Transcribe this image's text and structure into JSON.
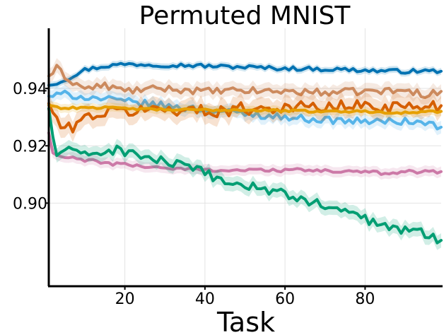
{
  "chart_data": {
    "type": "line",
    "title": "Permuted MNIST",
    "xlabel": "Task",
    "ylabel": "",
    "xlim": [
      1,
      99
    ],
    "ylim": [
      0.871,
      0.961
    ],
    "xticks": [
      20,
      40,
      60,
      80
    ],
    "yticks": [
      0.9,
      0.92,
      0.94
    ],
    "xtick_labels": [
      "20",
      "40",
      "60",
      "80"
    ],
    "ytick_labels": [
      "0.90",
      "0.92",
      "0.94"
    ],
    "grid": true,
    "legend": "none",
    "series": [
      {
        "color": "#0072b2",
        "band": 0.0012,
        "points": [
          [
            1,
            0.9411
          ],
          [
            5,
            0.943
          ],
          [
            10,
            0.9465
          ],
          [
            15,
            0.9478
          ],
          [
            20,
            0.9485
          ],
          [
            25,
            0.9484
          ],
          [
            30,
            0.9482
          ],
          [
            35,
            0.9481
          ],
          [
            40,
            0.9479
          ],
          [
            45,
            0.9476
          ],
          [
            50,
            0.9475
          ],
          [
            55,
            0.9472
          ],
          [
            60,
            0.947
          ],
          [
            65,
            0.9469
          ],
          [
            70,
            0.9467
          ],
          [
            75,
            0.9466
          ],
          [
            80,
            0.9463
          ],
          [
            85,
            0.9461
          ],
          [
            90,
            0.946
          ],
          [
            95,
            0.9461
          ],
          [
            99,
            0.946
          ]
        ],
        "wiggle": 0.0007
      },
      {
        "color": "#cc8a5e",
        "band": 0.0025,
        "points": [
          [
            1,
            0.9443
          ],
          [
            3,
            0.947
          ],
          [
            6,
            0.943
          ],
          [
            10,
            0.94
          ],
          [
            15,
            0.941
          ],
          [
            20,
            0.9392
          ],
          [
            30,
            0.94
          ],
          [
            40,
            0.939
          ],
          [
            50,
            0.9392
          ],
          [
            60,
            0.939
          ],
          [
            70,
            0.9386
          ],
          [
            80,
            0.939
          ],
          [
            90,
            0.9392
          ],
          [
            95,
            0.938
          ],
          [
            99,
            0.939
          ]
        ],
        "wiggle": 0.0012
      },
      {
        "color": "#56b4e9",
        "band": 0.0022,
        "points": [
          [
            1,
            0.9373
          ],
          [
            5,
            0.938
          ],
          [
            10,
            0.937
          ],
          [
            20,
            0.9355
          ],
          [
            30,
            0.934
          ],
          [
            40,
            0.9325
          ],
          [
            50,
            0.9312
          ],
          [
            60,
            0.93
          ],
          [
            70,
            0.929
          ],
          [
            80,
            0.9285
          ],
          [
            90,
            0.9285
          ],
          [
            95,
            0.928
          ],
          [
            99,
            0.9265
          ]
        ],
        "wiggle": 0.0012
      },
      {
        "color": "#d55e00",
        "band": 0.0035,
        "points": [
          [
            1,
            0.9348
          ],
          [
            3,
            0.929
          ],
          [
            5,
            0.925
          ],
          [
            8,
            0.928
          ],
          [
            12,
            0.931
          ],
          [
            20,
            0.932
          ],
          [
            30,
            0.933
          ],
          [
            40,
            0.932
          ],
          [
            50,
            0.933
          ],
          [
            60,
            0.9335
          ],
          [
            70,
            0.9335
          ],
          [
            80,
            0.934
          ],
          [
            90,
            0.9335
          ],
          [
            95,
            0.934
          ],
          [
            99,
            0.934
          ]
        ],
        "wiggle": 0.0022
      },
      {
        "color": "#e69f00",
        "band": 0.0015,
        "points": [
          [
            1,
            0.9342
          ],
          [
            5,
            0.933
          ],
          [
            10,
            0.9335
          ],
          [
            20,
            0.933
          ],
          [
            30,
            0.9326
          ],
          [
            40,
            0.9325
          ],
          [
            50,
            0.9325
          ],
          [
            60,
            0.9322
          ],
          [
            70,
            0.932
          ],
          [
            80,
            0.932
          ],
          [
            90,
            0.9315
          ],
          [
            95,
            0.9318
          ],
          [
            99,
            0.932
          ]
        ],
        "wiggle": 0.0004
      },
      {
        "color": "#cc79a7",
        "band": 0.0018,
        "points": [
          [
            1,
            0.9245
          ],
          [
            2,
            0.9175
          ],
          [
            4,
            0.916
          ],
          [
            8,
            0.9155
          ],
          [
            15,
            0.914
          ],
          [
            25,
            0.9128
          ],
          [
            35,
            0.9118
          ],
          [
            45,
            0.9115
          ],
          [
            55,
            0.9115
          ],
          [
            65,
            0.9115
          ],
          [
            75,
            0.911
          ],
          [
            85,
            0.9105
          ],
          [
            90,
            0.911
          ],
          [
            95,
            0.911
          ],
          [
            99,
            0.911
          ]
        ],
        "wiggle": 0.0006
      },
      {
        "color": "#009e73",
        "band": 0.0025,
        "points": [
          [
            1,
            0.933
          ],
          [
            2,
            0.923
          ],
          [
            3,
            0.917
          ],
          [
            5,
            0.919
          ],
          [
            8,
            0.917
          ],
          [
            12,
            0.9175
          ],
          [
            18,
            0.9185
          ],
          [
            22,
            0.9175
          ],
          [
            25,
            0.916
          ],
          [
            30,
            0.9145
          ],
          [
            35,
            0.9125
          ],
          [
            40,
            0.9105
          ],
          [
            45,
            0.9075
          ],
          [
            50,
            0.906
          ],
          [
            55,
            0.905
          ],
          [
            60,
            0.903
          ],
          [
            65,
            0.901
          ],
          [
            70,
            0.899
          ],
          [
            75,
            0.897
          ],
          [
            80,
            0.8945
          ],
          [
            85,
            0.892
          ],
          [
            90,
            0.8905
          ],
          [
            95,
            0.8895
          ],
          [
            99,
            0.887
          ]
        ],
        "wiggle": 0.0016
      }
    ]
  }
}
